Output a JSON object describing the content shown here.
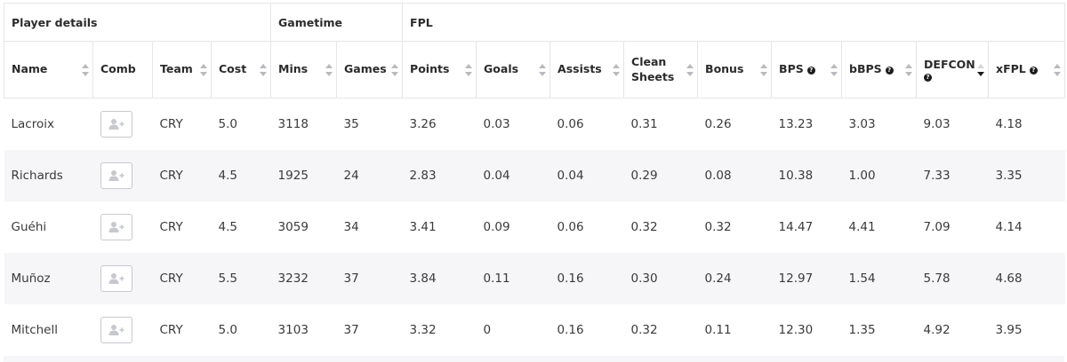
{
  "groups": {
    "player_details": "Player details",
    "gametime": "Gametime",
    "fpl": "FPL"
  },
  "columns": {
    "name": "Name",
    "comb": "Comb",
    "team": "Team",
    "cost": "Cost",
    "mins": "Mins",
    "games": "Games",
    "points": "Points",
    "goals": "Goals",
    "assists": "Assists",
    "clean_sheets": "Clean Sheets",
    "bonus": "Bonus",
    "bps": "BPS",
    "bbps": "bBPS",
    "defcon": "DEFCON",
    "xfpl": "xFPL"
  },
  "help_icon": "?",
  "sorted_column": "defcon",
  "comb_button_icon": "add-user-icon",
  "rows": [
    {
      "name": "Lacroix",
      "team": "CRY",
      "cost": "5.0",
      "mins": "3118",
      "games": "35",
      "points": "3.26",
      "goals": "0.03",
      "assists": "0.06",
      "clean_sheets": "0.31",
      "bonus": "0.26",
      "bps": "13.23",
      "bbps": "3.03",
      "defcon": "9.03",
      "xfpl": "4.18"
    },
    {
      "name": "Richards",
      "team": "CRY",
      "cost": "4.5",
      "mins": "1925",
      "games": "24",
      "points": "2.83",
      "goals": "0.04",
      "assists": "0.04",
      "clean_sheets": "0.29",
      "bonus": "0.08",
      "bps": "10.38",
      "bbps": "1.00",
      "defcon": "7.33",
      "xfpl": "3.35"
    },
    {
      "name": "Guéhi",
      "team": "CRY",
      "cost": "4.5",
      "mins": "3059",
      "games": "34",
      "points": "3.41",
      "goals": "0.09",
      "assists": "0.06",
      "clean_sheets": "0.32",
      "bonus": "0.32",
      "bps": "14.47",
      "bbps": "4.41",
      "defcon": "7.09",
      "xfpl": "4.14"
    },
    {
      "name": "Muñoz",
      "team": "CRY",
      "cost": "5.5",
      "mins": "3232",
      "games": "37",
      "points": "3.84",
      "goals": "0.11",
      "assists": "0.16",
      "clean_sheets": "0.30",
      "bonus": "0.24",
      "bps": "12.97",
      "bbps": "1.54",
      "defcon": "5.78",
      "xfpl": "4.68"
    },
    {
      "name": "Mitchell",
      "team": "CRY",
      "cost": "5.0",
      "mins": "3103",
      "games": "37",
      "points": "3.32",
      "goals": "0",
      "assists": "0.16",
      "clean_sheets": "0.32",
      "bonus": "0.11",
      "bps": "12.30",
      "bbps": "1.35",
      "defcon": "4.92",
      "xfpl": "3.95"
    }
  ]
}
